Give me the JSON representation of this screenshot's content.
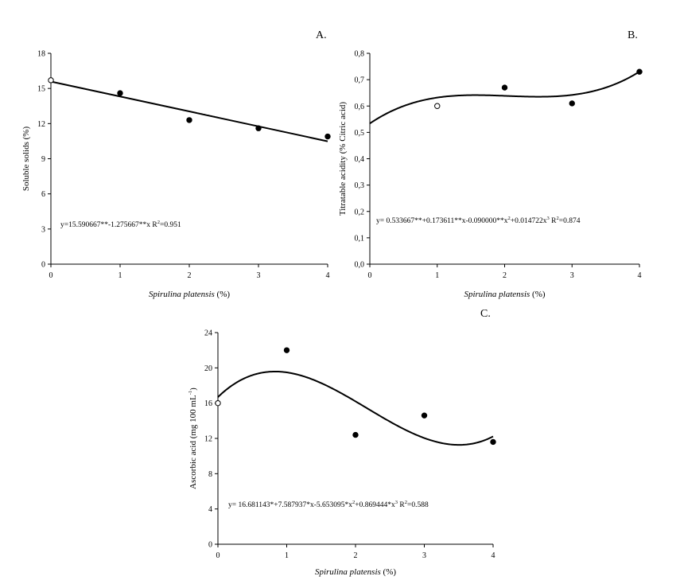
{
  "chart_data": [
    {
      "type": "scatter",
      "panel": "A.",
      "xlabel_italic": "Spirulina platensis",
      "xlabel_rest": " (%)",
      "ylabel": "Soluble solids (%)",
      "xlim": [
        0,
        4
      ],
      "ylim": [
        0,
        18
      ],
      "xticks": [
        0,
        1,
        2,
        3,
        4
      ],
      "yticks": [
        0,
        3,
        6,
        9,
        12,
        15,
        18
      ],
      "ytick_labels": [
        "0",
        "3",
        "6",
        "9",
        "12",
        "15",
        "18"
      ],
      "points": [
        {
          "x": 0,
          "y": 15.7,
          "open": true
        },
        {
          "x": 1,
          "y": 14.6,
          "open": false
        },
        {
          "x": 2,
          "y": 12.3,
          "open": false
        },
        {
          "x": 3,
          "y": 11.6,
          "open": false
        },
        {
          "x": 4,
          "y": 10.9,
          "open": false
        }
      ],
      "fit": {
        "coeffs": [
          15.590667,
          -1.275667
        ]
      },
      "equation": [
        {
          "t": "y=15.590667**-1.275667**x R"
        },
        {
          "t": "2",
          "sup": true
        },
        {
          "t": "=0.951"
        }
      ]
    },
    {
      "type": "scatter",
      "panel": "B.",
      "xlabel_italic": "Spirulina platensis",
      "xlabel_rest": " (%)",
      "ylabel": "Titratable acidity (% Citric acid)",
      "xlim": [
        0,
        4
      ],
      "ylim": [
        0,
        0.8
      ],
      "xticks": [
        0,
        1,
        2,
        3,
        4
      ],
      "yticks": [
        0,
        0.1,
        0.2,
        0.3,
        0.4,
        0.5,
        0.6,
        0.7,
        0.8
      ],
      "ytick_labels": [
        "0,0",
        "0,1",
        "0,2",
        "0,3",
        "0,4",
        "0,5",
        "0,6",
        "0,7",
        "0,8"
      ],
      "points": [
        {
          "x": 1,
          "y": 0.6,
          "open": true
        },
        {
          "x": 2,
          "y": 0.67,
          "open": false
        },
        {
          "x": 3,
          "y": 0.61,
          "open": false
        },
        {
          "x": 4,
          "y": 0.73,
          "open": false
        }
      ],
      "fit": {
        "coeffs": [
          0.533667,
          0.173611,
          -0.09,
          0.014722
        ]
      },
      "equation": [
        {
          "t": "y= 0.533667**+0.173611**x-0.090000**x"
        },
        {
          "t": "2",
          "sup": true
        },
        {
          "t": "+0.014722x"
        },
        {
          "t": "3",
          "sup": true
        },
        {
          "t": " R"
        },
        {
          "t": "2",
          "sup": true
        },
        {
          "t": "=0.874"
        }
      ]
    },
    {
      "type": "scatter",
      "panel": "C.",
      "xlabel_italic": "Spirulina platensis",
      "xlabel_rest": " (%)",
      "ylabel_main": "Ascorbic acid (mg 100 mL",
      "ylabel_sup": "-1",
      "ylabel_end": ")",
      "xlim": [
        0,
        4
      ],
      "ylim": [
        0,
        24
      ],
      "xticks": [
        0,
        1,
        2,
        3,
        4
      ],
      "yticks": [
        0,
        4,
        8,
        12,
        16,
        20,
        24
      ],
      "ytick_labels": [
        "0",
        "4",
        "8",
        "12",
        "16",
        "20",
        "24"
      ],
      "points": [
        {
          "x": 0,
          "y": 16.0,
          "open": true
        },
        {
          "x": 1,
          "y": 22.0,
          "open": false
        },
        {
          "x": 2,
          "y": 12.4,
          "open": false
        },
        {
          "x": 3,
          "y": 14.6,
          "open": false
        },
        {
          "x": 4,
          "y": 11.6,
          "open": false
        }
      ],
      "fit": {
        "coeffs": [
          16.681143,
          7.587937,
          -5.653095,
          0.869444
        ]
      },
      "equation": [
        {
          "t": "y= 16.681143*+7.587937*x-5.653095*x"
        },
        {
          "t": "2",
          "sup": true
        },
        {
          "t": "+0.869444*x"
        },
        {
          "t": "3",
          "sup": true
        },
        {
          "t": " R"
        },
        {
          "t": "2",
          "sup": true
        },
        {
          "t": "=0.588"
        }
      ]
    }
  ]
}
